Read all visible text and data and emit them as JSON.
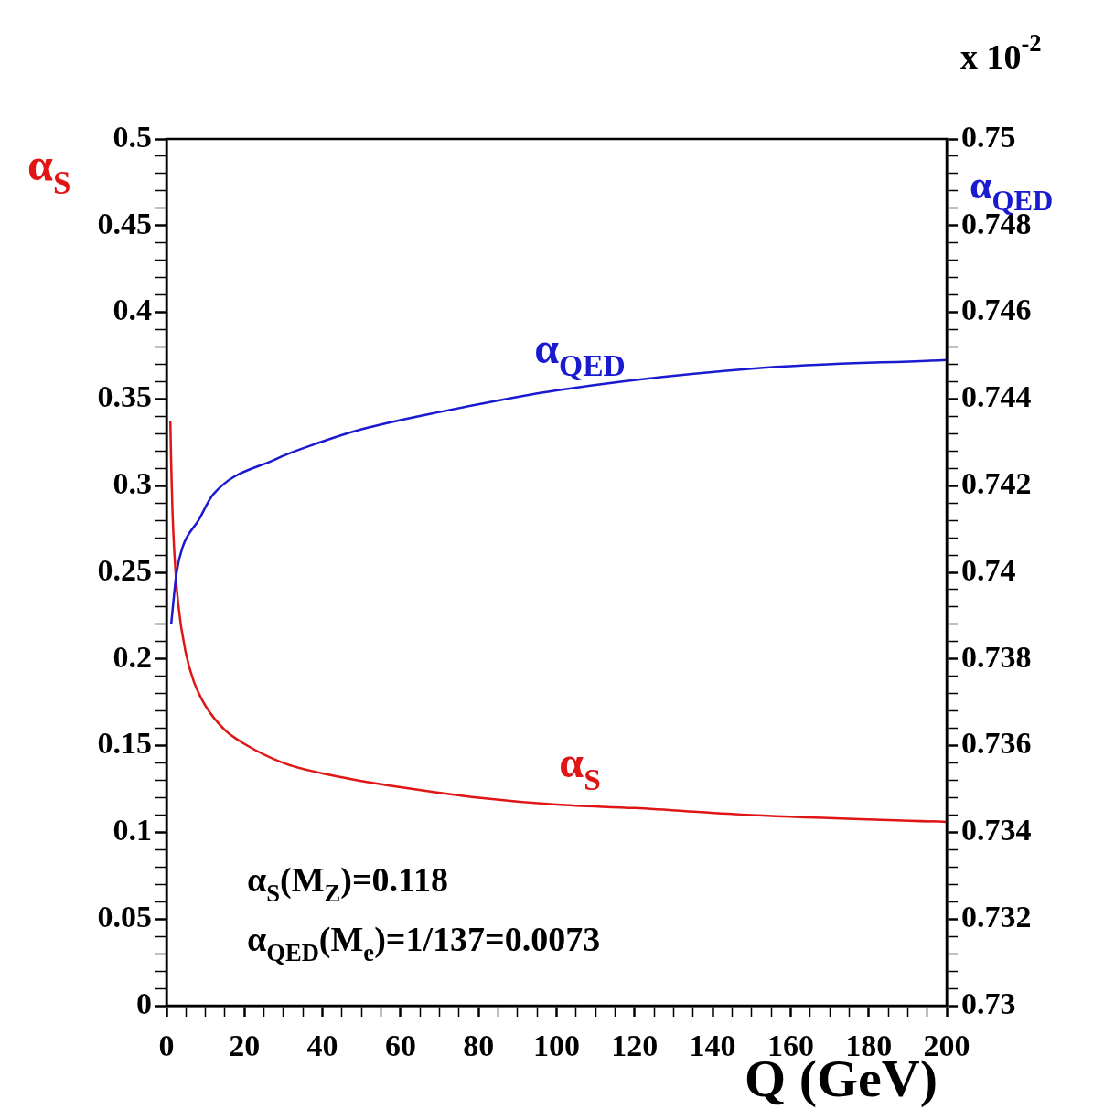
{
  "chart_data": {
    "type": "line",
    "xlabel": "Q (GeV)",
    "ylabel": "α$_{S}$",
    "y2label": "α$_{QED}$",
    "annotations": [
      "α$_{S}$(M$_{Z}$)=0.118",
      "α$_{QED}$(M$_{e}$)=1/137=0.0073",
      "x 10$^{-2}$"
    ],
    "xlim": [
      0,
      200
    ],
    "xticks": [
      0,
      {
        "value": 5,
        "label": null
      },
      {
        "value": 10,
        "label": null
      },
      {
        "value": 15,
        "label": null
      },
      20,
      {
        "value": 25,
        "label": null
      },
      {
        "value": 30,
        "label": null
      },
      {
        "value": 35,
        "label": null
      },
      40,
      {
        "value": 45,
        "label": null
      },
      {
        "value": 50,
        "label": null
      },
      {
        "value": 55,
        "label": null
      },
      60,
      {
        "value": 65,
        "label": null
      },
      {
        "value": 70,
        "label": null
      },
      {
        "value": 75,
        "label": null
      },
      80,
      {
        "value": 85,
        "label": null
      },
      {
        "value": 90,
        "label": null
      },
      {
        "value": 95,
        "label": null
      },
      100,
      {
        "value": 105,
        "label": null
      },
      {
        "value": 110,
        "label": null
      },
      {
        "value": 115,
        "label": null
      },
      120,
      {
        "value": 125,
        "label": null
      },
      {
        "value": 130,
        "label": null
      },
      {
        "value": 135,
        "label": null
      },
      140,
      {
        "value": 145,
        "label": null
      },
      {
        "value": 150,
        "label": null
      },
      {
        "value": 155,
        "label": null
      },
      160,
      {
        "value": 165,
        "label": null
      },
      {
        "value": 170,
        "label": null
      },
      {
        "value": 175,
        "label": null
      },
      180,
      {
        "value": 185,
        "label": null
      },
      {
        "value": 190,
        "label": null
      },
      {
        "value": 195,
        "label": null
      },
      200
    ],
    "ylim": [
      0,
      0.5
    ],
    "yticks": [
      0,
      {
        "value": 0.01,
        "label": null
      },
      {
        "value": 0.02,
        "label": null
      },
      {
        "value": 0.03,
        "label": null
      },
      {
        "value": 0.04,
        "label": null
      },
      0.05,
      {
        "value": 0.06,
        "label": null
      },
      {
        "value": 0.07,
        "label": null
      },
      {
        "value": 0.08,
        "label": null
      },
      {
        "value": 0.09,
        "label": null
      },
      0.1,
      {
        "value": 0.11,
        "label": null
      },
      {
        "value": 0.12,
        "label": null
      },
      {
        "value": 0.13,
        "label": null
      },
      {
        "value": 0.14,
        "label": null
      },
      0.15,
      {
        "value": 0.16,
        "label": null
      },
      {
        "value": 0.17,
        "label": null
      },
      {
        "value": 0.18,
        "label": null
      },
      {
        "value": 0.19,
        "label": null
      },
      0.2,
      {
        "value": 0.21,
        "label": null
      },
      {
        "value": 0.22,
        "label": null
      },
      {
        "value": 0.23,
        "label": null
      },
      {
        "value": 0.24,
        "label": null
      },
      0.25,
      {
        "value": 0.26,
        "label": null
      },
      {
        "value": 0.27,
        "label": null
      },
      {
        "value": 0.28,
        "label": null
      },
      {
        "value": 0.29,
        "label": null
      },
      0.3,
      {
        "value": 0.31,
        "label": null
      },
      {
        "value": 0.32,
        "label": null
      },
      {
        "value": 0.33,
        "label": null
      },
      {
        "value": 0.34,
        "label": null
      },
      0.35,
      {
        "value": 0.36,
        "label": null
      },
      {
        "value": 0.37,
        "label": null
      },
      {
        "value": 0.38,
        "label": null
      },
      {
        "value": 0.39,
        "label": null
      },
      0.4,
      {
        "value": 0.41,
        "label": null
      },
      {
        "value": 0.42,
        "label": null
      },
      {
        "value": 0.43,
        "label": null
      },
      {
        "value": 0.44,
        "label": null
      },
      0.45,
      {
        "value": 0.46,
        "label": null
      },
      {
        "value": 0.47,
        "label": null
      },
      {
        "value": 0.48,
        "label": null
      },
      {
        "value": 0.49,
        "label": null
      },
      0.5
    ],
    "y2lim": [
      0.73,
      0.75
    ],
    "y2ticks": [
      0.73,
      {
        "value": 0.7304,
        "label": null
      },
      {
        "value": 0.7308,
        "label": null
      },
      {
        "value": 0.7312,
        "label": null
      },
      {
        "value": 0.7316,
        "label": null
      },
      0.732,
      {
        "value": 0.7324,
        "label": null
      },
      {
        "value": 0.7328,
        "label": null
      },
      {
        "value": 0.7332,
        "label": null
      },
      {
        "value": 0.7336,
        "label": null
      },
      0.734,
      {
        "value": 0.7344,
        "label": null
      },
      {
        "value": 0.7348,
        "label": null
      },
      {
        "value": 0.7352,
        "label": null
      },
      {
        "value": 0.7356,
        "label": null
      },
      0.736,
      {
        "value": 0.7364,
        "label": null
      },
      {
        "value": 0.7368,
        "label": null
      },
      {
        "value": 0.7372,
        "label": null
      },
      {
        "value": 0.7376,
        "label": null
      },
      0.738,
      {
        "value": 0.7384,
        "label": null
      },
      {
        "value": 0.7388,
        "label": null
      },
      {
        "value": 0.7392,
        "label": null
      },
      {
        "value": 0.7396,
        "label": null
      },
      0.74,
      {
        "value": 0.7404,
        "label": null
      },
      {
        "value": 0.7408,
        "label": null
      },
      {
        "value": 0.7412,
        "label": null
      },
      {
        "value": 0.7416,
        "label": null
      },
      0.742,
      {
        "value": 0.7424,
        "label": null
      },
      {
        "value": 0.7428,
        "label": null
      },
      {
        "value": 0.7432,
        "label": null
      },
      {
        "value": 0.7436,
        "label": null
      },
      0.744,
      {
        "value": 0.7444,
        "label": null
      },
      {
        "value": 0.7448,
        "label": null
      },
      {
        "value": 0.7452,
        "label": null
      },
      {
        "value": 0.7456,
        "label": null
      },
      0.746,
      {
        "value": 0.7464,
        "label": null
      },
      {
        "value": 0.7468,
        "label": null
      },
      {
        "value": 0.7472,
        "label": null
      },
      {
        "value": 0.7476,
        "label": null
      },
      0.748,
      {
        "value": 0.7484,
        "label": null
      },
      {
        "value": 0.7488,
        "label": null
      },
      {
        "value": 0.7492,
        "label": null
      },
      {
        "value": 0.7496,
        "label": null
      },
      0.75
    ],
    "grid": false,
    "legend": false,
    "marker": "none",
    "line_style": "solid",
    "series": [
      {
        "name": "α$_{QED}$",
        "color": "#1a1ad0",
        "axis": "y2",
        "x": [
          1.2,
          2.6,
          4.2,
          8.2,
          12,
          27.7,
          39.4,
          50,
          70,
          100,
          150,
          200
        ],
        "values": [
          0.7388,
          0.74,
          0.7406,
          0.7412,
          0.7418,
          0.7426,
          0.743,
          0.7433,
          0.7437,
          0.7442,
          0.7447,
          0.7449
        ]
      },
      {
        "name": "α$_{S}$",
        "color": "#e01515",
        "axis": "y",
        "x": [
          1,
          1.2,
          1.5,
          2,
          3,
          5,
          7,
          10,
          15,
          20,
          30,
          40,
          60,
          80,
          100,
          120,
          150,
          200
        ],
        "values": [
          0.337,
          0.313,
          0.288,
          0.262,
          0.232,
          0.203,
          0.187,
          0.173,
          0.159,
          0.151,
          0.14,
          0.134,
          0.126,
          0.12,
          0.116,
          0.114,
          0.11,
          0.106
        ]
      }
    ]
  }
}
